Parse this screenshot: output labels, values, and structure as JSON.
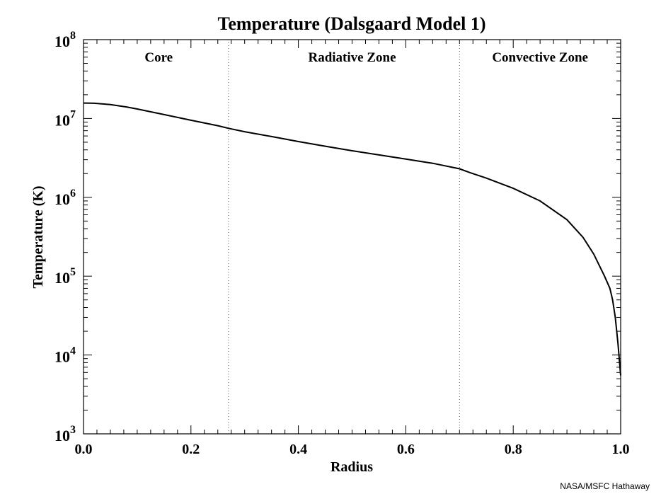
{
  "chart_data": {
    "type": "line",
    "title": "Temperature (Dalsgaard Model 1)",
    "xlabel": "Radius",
    "ylabel": "Temperature (K)",
    "xlim": [
      0.0,
      1.0
    ],
    "ylim": [
      1000,
      100000000
    ],
    "y_scale": "log",
    "x_ticks": [
      "0.0",
      "0.2",
      "0.4",
      "0.6",
      "0.8",
      "1.0"
    ],
    "y_ticks": [
      {
        "base": "10",
        "exp": "3"
      },
      {
        "base": "10",
        "exp": "4"
      },
      {
        "base": "10",
        "exp": "5"
      },
      {
        "base": "10",
        "exp": "6"
      },
      {
        "base": "10",
        "exp": "7"
      },
      {
        "base": "10",
        "exp": "8"
      }
    ],
    "boundaries": [
      0.27,
      0.7
    ],
    "regions": [
      {
        "label": "Core",
        "center": 0.14
      },
      {
        "label": "Radiative Zone",
        "center": 0.5
      },
      {
        "label": "Convective Zone",
        "center": 0.85
      }
    ],
    "series": [
      {
        "x": [
          0.0,
          0.02,
          0.05,
          0.08,
          0.1,
          0.15,
          0.2,
          0.25,
          0.27,
          0.3,
          0.35,
          0.4,
          0.45,
          0.5,
          0.55,
          0.6,
          0.65,
          0.7,
          0.72,
          0.75,
          0.8,
          0.85,
          0.9,
          0.93,
          0.95,
          0.97,
          0.98,
          0.985,
          0.99,
          0.995,
          1.0
        ],
        "y": [
          15700000,
          15600000,
          15000000,
          14000000,
          13200000,
          11200000,
          9500000,
          8100000,
          7500000,
          6800000,
          5900000,
          5100000,
          4450000,
          3900000,
          3450000,
          3050000,
          2700000,
          2300000,
          2050000,
          1750000,
          1300000,
          900000,
          520000,
          310000,
          190000,
          100000,
          70000,
          50000,
          30000,
          14000,
          5500
        ]
      }
    ]
  },
  "credit": "NASA/MSFC Hathaway"
}
